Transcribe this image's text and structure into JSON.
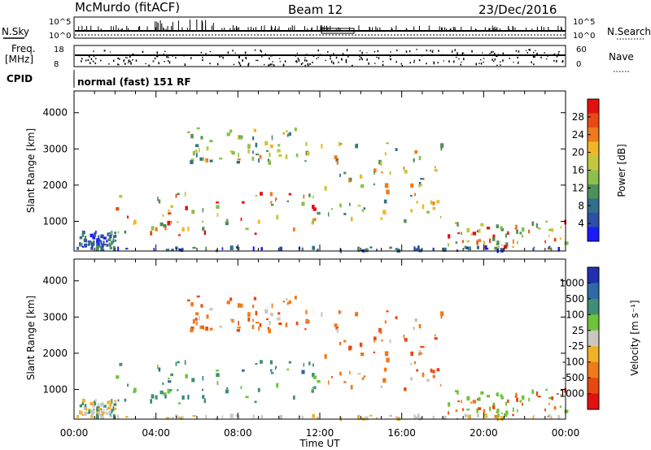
{
  "header": {
    "station": "McMurdo (fitACF)",
    "beam": "Beam 12",
    "date": "23/Dec/2016"
  },
  "status_panels": {
    "nsky_label": "N.Sky",
    "nsearch_label": "N.Search",
    "nsky_ticks": [
      "10^5",
      "10^0"
    ],
    "nsearch_ticks": [
      "10^5",
      "10^0"
    ],
    "freq_label_1": "Freq.",
    "freq_label_2": "[MHz]",
    "freq_ticks": [
      "18",
      "8"
    ],
    "nave_label": "Nave",
    "nave_ticks": [
      "60",
      "0"
    ],
    "cpid_label": "CPID",
    "cpid_value": "normal (fast) 151 RF"
  },
  "chart_data": [
    {
      "type": "heatmap",
      "name": "power-panel",
      "ylabel": "Slant Range [km]",
      "ylim": [
        180,
        4600
      ],
      "yticks": [
        "4000",
        "3000",
        "2000",
        "1000"
      ],
      "ytick_values": [
        4000,
        3000,
        2000,
        1000
      ],
      "colorbar": {
        "label": "Power [dB]",
        "range": [
          0,
          32
        ],
        "ticks": [
          "28",
          "24",
          "20",
          "16",
          "12",
          "8",
          "4"
        ],
        "tick_values": [
          28,
          24,
          20,
          16,
          12,
          8,
          4
        ],
        "colors": [
          "#1a1aff",
          "#2c4fa8",
          "#2f6f8a",
          "#4f8f5a",
          "#8cc04c",
          "#c2c83c",
          "#f0b828",
          "#f07a1a",
          "#e84a14",
          "#e41010"
        ]
      },
      "xlim_hours": [
        0,
        24
      ],
      "xticks": [
        "00:00",
        "04:00",
        "08:00",
        "12:00",
        "16:00",
        "20:00",
        "00:00"
      ]
    },
    {
      "type": "heatmap",
      "name": "velocity-panel",
      "xlabel": "Time UT",
      "ylabel": "Slant Range [km]",
      "ylim": [
        180,
        4600
      ],
      "yticks": [
        "4000",
        "3000",
        "2000",
        "1000"
      ],
      "ytick_values": [
        4000,
        3000,
        2000,
        1000
      ],
      "colorbar": {
        "label": "Velocity [m s⁻¹]",
        "ticks": [
          "1000",
          "500",
          "100",
          "25",
          "-25",
          "-100",
          "-500",
          "-1000"
        ],
        "colors": [
          "#2030b0",
          "#2e6aa8",
          "#3f8f74",
          "#6ec33a",
          "#c8c8c0",
          "#f0b028",
          "#f07a1a",
          "#e84810",
          "#e41010"
        ]
      },
      "xlim_hours": [
        0,
        24
      ],
      "xticks": [
        "00:00",
        "04:00",
        "08:00",
        "12:00",
        "16:00",
        "20:00",
        "00:00"
      ]
    }
  ],
  "echo_regions": [
    {
      "t0": 0.2,
      "t1": 2.0,
      "r0": 200,
      "r1": 700,
      "power": "low",
      "vel": "neg-weak"
    },
    {
      "t0": 2.0,
      "t1": 12.0,
      "r0": 600,
      "r1": 1800,
      "power": "high",
      "vel": "pos-mid"
    },
    {
      "t0": 5.5,
      "t1": 11.5,
      "r0": 2600,
      "r1": 3600,
      "power": "mid",
      "vel": "neg-mid"
    },
    {
      "t0": 12.0,
      "t1": 18.0,
      "r0": 1000,
      "r1": 3200,
      "power": "mid",
      "vel": "neg-mid"
    },
    {
      "t0": 18.0,
      "t1": 24.0,
      "r0": 250,
      "r1": 1000,
      "power": "high",
      "vel": "neg-strong"
    },
    {
      "t0": 0.0,
      "t1": 24.0,
      "r0": 180,
      "r1": 280,
      "power": "low",
      "vel": "ground"
    }
  ]
}
